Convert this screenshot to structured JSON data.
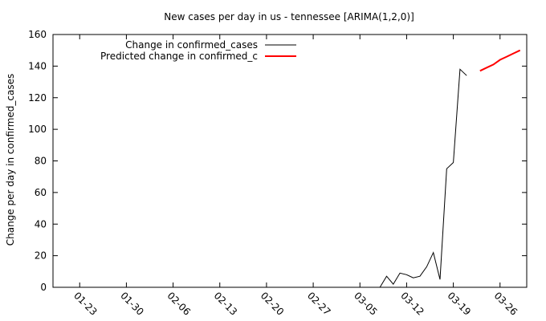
{
  "chart_data": {
    "type": "line",
    "title": "New cases per day in us - tennessee [ARIMA(1,2,0)]",
    "xlabel": "",
    "ylabel": "Change per day in confirmed_cases",
    "ylim": [
      0,
      160
    ],
    "yticks": [
      0,
      20,
      40,
      60,
      80,
      100,
      120,
      140,
      160
    ],
    "xlim": [
      "2020-01-19",
      "2020-03-30"
    ],
    "xticks": [
      "01-23",
      "01-30",
      "02-06",
      "02-13",
      "02-20",
      "02-27",
      "03-05",
      "03-12",
      "03-19",
      "03-26"
    ],
    "xtick_dates": [
      "2020-01-23",
      "2020-01-30",
      "2020-02-06",
      "2020-02-13",
      "2020-02-20",
      "2020-02-27",
      "2020-03-05",
      "2020-03-12",
      "2020-03-19",
      "2020-03-26"
    ],
    "grid": false,
    "legend_position": "top-left",
    "series": [
      {
        "name": "Change in confirmed_cases",
        "color": "#000000",
        "x": [
          "2020-03-08",
          "2020-03-09",
          "2020-03-10",
          "2020-03-11",
          "2020-03-12",
          "2020-03-13",
          "2020-03-14",
          "2020-03-15",
          "2020-03-16",
          "2020-03-17",
          "2020-03-18",
          "2020-03-19",
          "2020-03-20",
          "2020-03-21",
          "2020-03-22"
        ],
        "y": [
          0,
          7,
          2,
          9,
          8,
          6,
          7,
          13,
          22,
          5,
          75,
          79,
          138,
          134,
          null
        ]
      },
      {
        "name": "Predicted change in confirmed_c",
        "color": "#ff0000",
        "x": [
          "2020-03-23",
          "2020-03-24",
          "2020-03-25",
          "2020-03-26",
          "2020-03-27",
          "2020-03-28",
          "2020-03-29"
        ],
        "y": [
          137,
          139,
          141,
          144,
          146,
          148,
          150
        ]
      }
    ]
  }
}
